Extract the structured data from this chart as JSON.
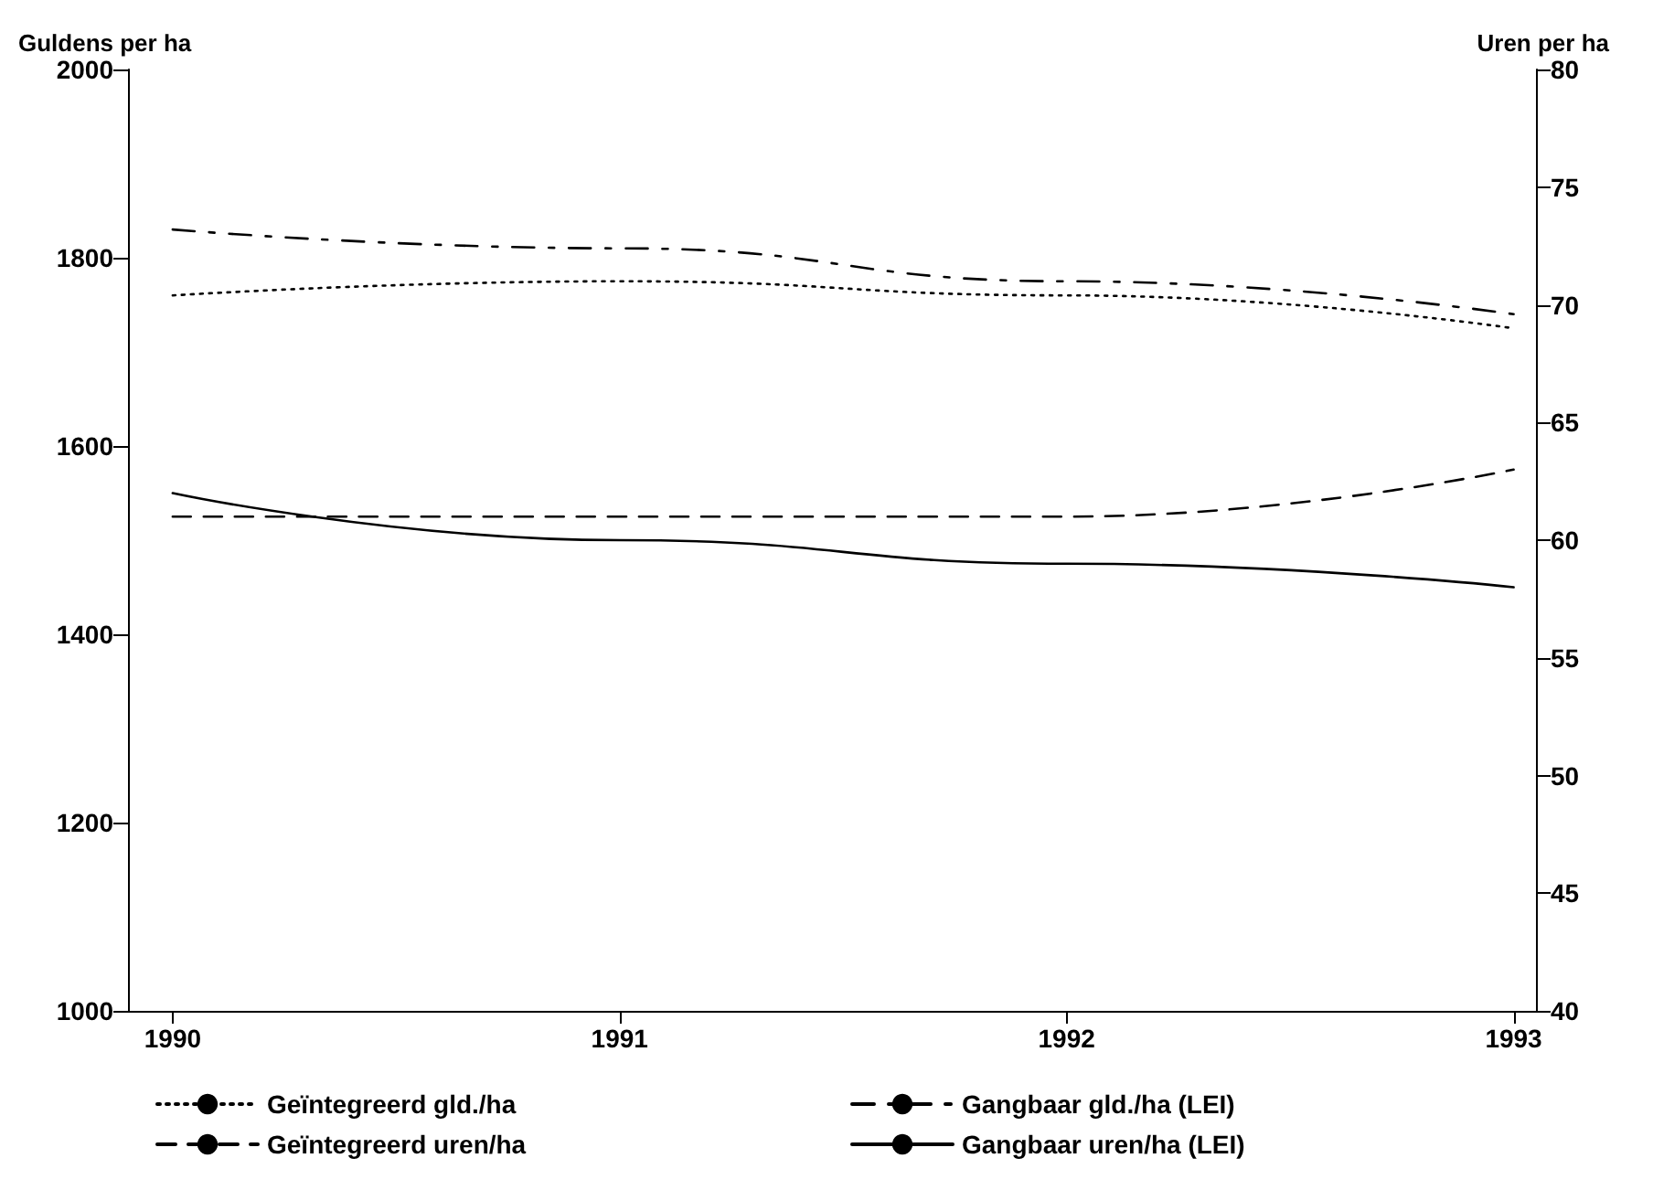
{
  "chart_data": {
    "type": "line",
    "ylabel": "Guldens per ha",
    "y2label": "Uren per ha",
    "x": [
      1990,
      1991,
      1992,
      1993
    ],
    "xlim": [
      1989.9,
      1993.05
    ],
    "xticks": [
      1990,
      1991,
      1992,
      1993
    ],
    "ylim": [
      1000,
      2000
    ],
    "yticks": [
      1000,
      1200,
      1400,
      1600,
      1800,
      2000
    ],
    "y2lim": [
      40,
      80
    ],
    "y2ticks": [
      40,
      45,
      50,
      55,
      60,
      65,
      70,
      75,
      80
    ],
    "grid": false,
    "legend": "bottom",
    "marker": "none",
    "series": [
      {
        "name": "Geïntegreerd gld./ha",
        "color": "#000000",
        "line_style": "dotted",
        "values": [
          1760,
          1775,
          1760,
          1725
        ]
      },
      {
        "name": "Gangbaar gld./ha (LEI)",
        "color": "#000000",
        "line_style": "dashdot",
        "values": [
          1830,
          1810,
          1775,
          1740
        ]
      },
      {
        "name": "Geïntegreerd uren/ha",
        "color": "#000000",
        "line_style": "dashed",
        "axis": "y2",
        "values": [
          61,
          61,
          61,
          63
        ]
      },
      {
        "name": "Gangbaar uren/ha (LEI)",
        "color": "#000000",
        "line_style": "solid",
        "axis": "y2",
        "values": [
          62,
          60,
          59,
          58
        ]
      }
    ]
  }
}
